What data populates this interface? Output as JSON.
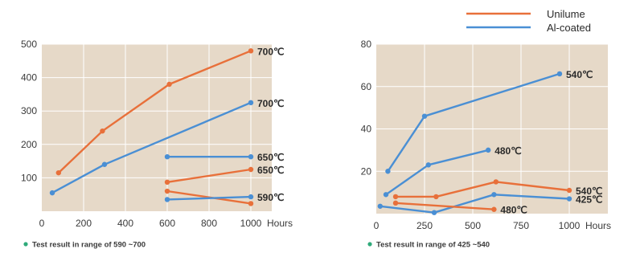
{
  "colors": {
    "unilume": "#e8703a",
    "alcoated": "#4a8fd4",
    "plot_bg": "#e6d9c8",
    "grid": "#ffffff",
    "note_dot": "#2faa7a"
  },
  "legend": {
    "position": "top-right",
    "items": [
      {
        "label": "Unilume",
        "color": "#e8703a"
      },
      {
        "label": "Al-coated",
        "color": "#4a8fd4"
      }
    ]
  },
  "chart_data": [
    {
      "type": "line",
      "xlabel": "Hours",
      "ylabel": "",
      "xlim": [
        0,
        1100
      ],
      "ylim": [
        0,
        500
      ],
      "xticks": [
        0,
        200,
        400,
        600,
        800,
        1000
      ],
      "yticks": [
        100,
        200,
        300,
        400,
        500
      ],
      "grid": true,
      "footnote": "Test result in range of 590 ~700",
      "series": [
        {
          "group": "Unilume",
          "label": "700℃",
          "color": "#e8703a",
          "x": [
            80,
            290,
            610,
            1000
          ],
          "y": [
            115,
            240,
            380,
            480
          ]
        },
        {
          "group": "Al-coated",
          "label": "700℃",
          "color": "#4a8fd4",
          "x": [
            50,
            300,
            1000
          ],
          "y": [
            55,
            140,
            325
          ]
        },
        {
          "group": "Al-coated",
          "label": "650℃",
          "color": "#4a8fd4",
          "x": [
            600,
            1000
          ],
          "y": [
            163,
            163
          ]
        },
        {
          "group": "Unilume",
          "label": "650℃",
          "color": "#e8703a",
          "x": [
            600,
            1000
          ],
          "y": [
            87,
            125
          ]
        },
        {
          "group": "Unilume",
          "label": "",
          "color": "#e8703a",
          "x": [
            600,
            1000
          ],
          "y": [
            60,
            23
          ]
        },
        {
          "group": "Al-coated",
          "label": "590℃",
          "color": "#4a8fd4",
          "x": [
            600,
            1000
          ],
          "y": [
            35,
            43
          ]
        }
      ]
    },
    {
      "type": "line",
      "xlabel": "Hours",
      "ylabel": "",
      "xlim": [
        0,
        1200
      ],
      "ylim": [
        0,
        80
      ],
      "xticks": [
        0,
        250,
        500,
        750,
        1000
      ],
      "yticks": [
        20,
        40,
        60,
        80
      ],
      "grid": true,
      "footnote": "Test result in range of 425 ~540",
      "series": [
        {
          "group": "Al-coated",
          "label": "540℃",
          "color": "#4a8fd4",
          "x": [
            60,
            250,
            950
          ],
          "y": [
            20,
            46,
            66
          ]
        },
        {
          "group": "Al-coated",
          "label": "480℃",
          "color": "#4a8fd4",
          "x": [
            50,
            270,
            580
          ],
          "y": [
            9,
            23,
            30
          ]
        },
        {
          "group": "Unilume",
          "label": "540℃",
          "color": "#e8703a",
          "x": [
            100,
            310,
            620,
            1000
          ],
          "y": [
            8,
            8,
            15,
            11
          ]
        },
        {
          "group": "Al-coated",
          "label": "425℃",
          "color": "#4a8fd4",
          "x": [
            20,
            300,
            610,
            1000
          ],
          "y": [
            3.5,
            0.5,
            9,
            7
          ]
        },
        {
          "group": "Unilume",
          "label": "480℃",
          "color": "#e8703a",
          "x": [
            100,
            610
          ],
          "y": [
            5,
            2
          ]
        }
      ]
    }
  ]
}
